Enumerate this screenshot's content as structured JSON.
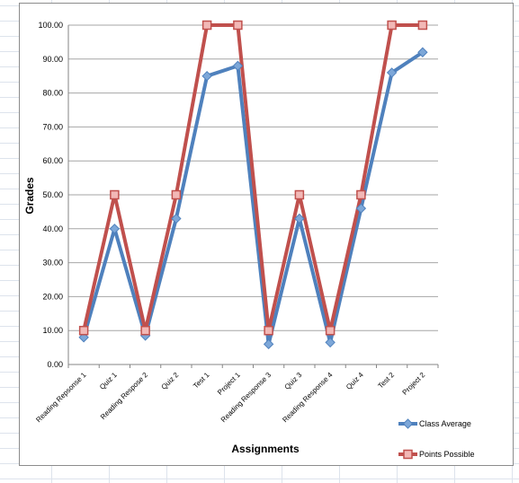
{
  "chart_data": {
    "type": "line",
    "xlabel": "Assignments",
    "ylabel": "Grades",
    "ylim": [
      0,
      100
    ],
    "ytick_step": 10,
    "grid": true,
    "legend_position": "bottom-right",
    "categories": [
      "Reading Repsonse 1",
      "Quiz 1",
      "Reading Respose 2",
      "Quiz 2",
      "Test 1",
      "Project 1",
      "Reading Response 3",
      "Quiz 3",
      "Reading Response 4",
      "Quiz 4",
      "Test 2",
      "Project 2"
    ],
    "series": [
      {
        "name": "Class Average",
        "color": "#4f81bd",
        "marker": "diamond",
        "values": [
          8,
          40,
          8.5,
          43,
          85,
          88,
          6,
          43,
          6.5,
          46,
          86,
          92
        ]
      },
      {
        "name": "Points Possible",
        "color": "#c0504d",
        "marker": "square",
        "values": [
          10,
          50,
          10,
          50,
          100,
          100,
          10,
          50,
          10,
          50,
          100,
          100
        ]
      }
    ]
  }
}
